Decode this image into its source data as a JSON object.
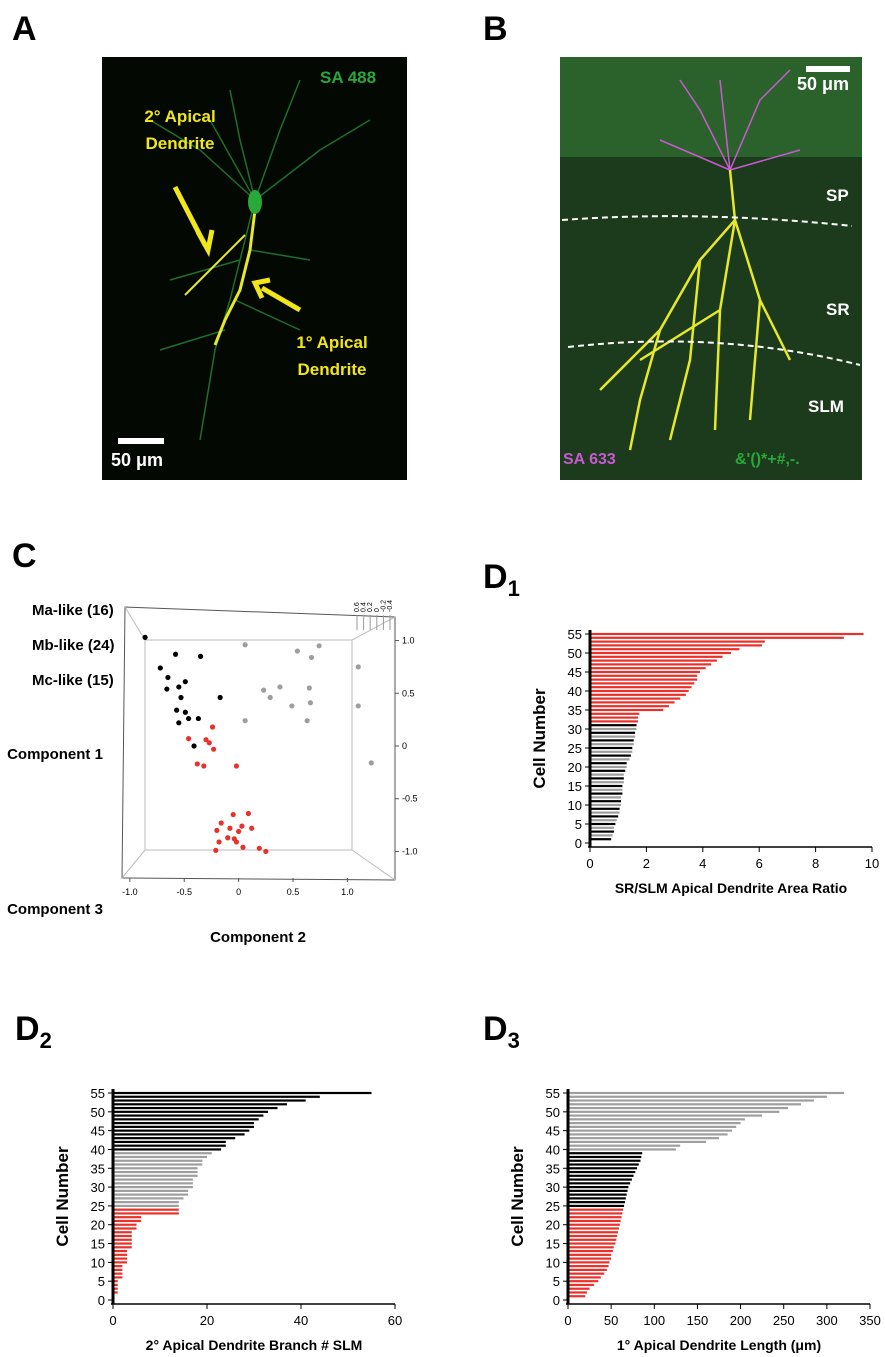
{
  "images": [
    {
      "panel": "A",
      "scale_bar": "50 μm",
      "labels": [
        "SA 488",
        "2° Apical Dendrite",
        "1° Apical Dendrite"
      ]
    },
    {
      "panel": "B",
      "scale_bar": "50 μm",
      "labels": [
        "SP",
        "SR",
        "SLM",
        "SA 633",
        "&'()*+#,-."
      ]
    }
  ],
  "chart_data": [
    {
      "type": "scatter3d",
      "panel": "C",
      "xlabel": "Component 2",
      "ylabel": "Component 1",
      "zlabel": "Component 3",
      "xlim": [
        -1.1,
        1.3
      ],
      "ylim": [
        -1.1,
        1.1
      ],
      "zlim": [
        0.6,
        -0.4
      ],
      "xticks": [
        {
          "value": -1,
          "label": "-1.0"
        },
        -0.5,
        0,
        0.5,
        {
          "value": 1,
          "label": "1.0"
        }
      ],
      "yticks": [
        {
          "value": 1,
          "label": "1.0"
        },
        0.5,
        0,
        -0.5,
        {
          "value": -1,
          "label": "-1.0"
        }
      ],
      "zticks": [
        0.6,
        0.4,
        0.2,
        0,
        -0.2,
        -0.4
      ],
      "series": [
        {
          "name": "Ma-like (16)",
          "color": "#000000",
          "x": [
            -0.86,
            -0.58,
            -0.35,
            -0.72,
            -0.65,
            -0.55,
            -0.66,
            -0.17,
            -0.49,
            -0.53,
            -0.57,
            -0.49,
            -0.37,
            -0.55,
            -0.41,
            -0.46
          ],
          "values": [
            1.03,
            0.87,
            0.85,
            0.74,
            0.65,
            0.56,
            0.54,
            0.46,
            0.61,
            0.46,
            0.34,
            0.32,
            0.26,
            0.22,
            0.0,
            0.26
          ]
        },
        {
          "name": "Mb-like (24)",
          "color": "#e8312b",
          "x": [
            -0.46,
            -0.24,
            -0.3,
            -0.27,
            -0.23,
            -0.38,
            -0.32,
            -0.02,
            -0.05,
            0.09,
            -0.16,
            0.03,
            -0.08,
            0.0,
            -0.2,
            0.12,
            -0.04,
            -0.18,
            -0.02,
            0.04,
            0.19,
            0.25,
            -0.21,
            -0.1
          ],
          "values": [
            0.07,
            0.18,
            0.06,
            0.03,
            -0.03,
            -0.17,
            -0.19,
            -0.19,
            -0.65,
            -0.64,
            -0.73,
            -0.76,
            -0.78,
            -0.81,
            -0.8,
            -0.78,
            -0.88,
            -0.91,
            -0.91,
            -0.96,
            -0.97,
            -1.0,
            -0.99,
            -0.87
          ]
        },
        {
          "name": "Mc-like (15)",
          "color": "#9e9e9e",
          "x": [
            0.06,
            0.54,
            0.74,
            1.1,
            0.67,
            0.23,
            0.38,
            0.29,
            0.49,
            0.65,
            0.66,
            0.06,
            0.63,
            1.1,
            1.22
          ],
          "values": [
            0.96,
            0.9,
            0.95,
            0.75,
            0.84,
            0.53,
            0.56,
            0.46,
            0.38,
            0.55,
            0.41,
            0.24,
            0.24,
            0.38,
            -0.16
          ]
        }
      ]
    },
    {
      "type": "barh",
      "panel": "D",
      "panel_sub": "1",
      "xlabel": "SR/SLM Apical Dendrite Area Ratio",
      "ylabel": "Cell Number",
      "xlim": [
        0,
        10
      ],
      "ylim": [
        0,
        55
      ],
      "xticks": [
        0,
        2,
        4,
        6,
        8,
        10
      ],
      "yticks": [
        0,
        5,
        10,
        15,
        20,
        25,
        30,
        35,
        40,
        45,
        50,
        55
      ],
      "y": [
        1,
        2,
        3,
        4,
        5,
        6,
        7,
        8,
        9,
        10,
        11,
        12,
        13,
        14,
        15,
        16,
        17,
        18,
        19,
        20,
        21,
        22,
        23,
        24,
        25,
        26,
        27,
        28,
        29,
        30,
        31,
        32,
        33,
        34,
        35,
        36,
        37,
        38,
        39,
        40,
        41,
        42,
        43,
        44,
        45,
        46,
        47,
        48,
        49,
        50,
        51,
        52,
        53,
        54,
        55
      ],
      "values": [
        0.75,
        0.8,
        0.85,
        0.85,
        0.9,
        0.95,
        1.0,
        1.05,
        1.05,
        1.1,
        1.1,
        1.1,
        1.15,
        1.15,
        1.15,
        1.2,
        1.2,
        1.2,
        1.25,
        1.3,
        1.3,
        1.4,
        1.45,
        1.5,
        1.5,
        1.55,
        1.55,
        1.6,
        1.6,
        1.65,
        1.65,
        1.7,
        1.7,
        1.75,
        2.6,
        2.8,
        3.0,
        3.2,
        3.4,
        3.5,
        3.6,
        3.7,
        3.8,
        3.8,
        3.9,
        4.1,
        4.3,
        4.5,
        4.7,
        5.0,
        5.3,
        6.1,
        6.2,
        9.0,
        9.7
      ],
      "colors": [
        "#000000",
        "#9e9e9e",
        "#000000",
        "#9e9e9e",
        "#000000",
        "#9e9e9e",
        "#000000",
        "#9e9e9e",
        "#000000",
        "#9e9e9e",
        "#000000",
        "#9e9e9e",
        "#000000",
        "#9e9e9e",
        "#000000",
        "#9e9e9e",
        "#000000",
        "#9e9e9e",
        "#000000",
        "#9e9e9e",
        "#000000",
        "#9e9e9e",
        "#000000",
        "#9e9e9e",
        "#000000",
        "#9e9e9e",
        "#000000",
        "#9e9e9e",
        "#000000",
        "#9e9e9e",
        "#000000",
        "#e8312b",
        "#e8312b",
        "#e8312b",
        "#e8312b",
        "#e8312b",
        "#e8312b",
        "#e8312b",
        "#e8312b",
        "#e8312b",
        "#e8312b",
        "#e8312b",
        "#e8312b",
        "#e8312b",
        "#e8312b",
        "#e8312b",
        "#e8312b",
        "#e8312b",
        "#e8312b",
        "#e8312b",
        "#e8312b",
        "#e8312b",
        "#e8312b",
        "#e8312b",
        "#e8312b"
      ]
    },
    {
      "type": "barh",
      "panel": "D",
      "panel_sub": "2",
      "xlabel": "2° Apical Dendrite Branch # SLM",
      "ylabel": "Cell Number",
      "xlim": [
        0,
        60
      ],
      "ylim": [
        0,
        55
      ],
      "xticks": [
        0,
        20,
        40,
        60
      ],
      "yticks": [
        0,
        5,
        10,
        15,
        20,
        25,
        30,
        35,
        40,
        45,
        50,
        55
      ],
      "y": [
        1,
        2,
        3,
        4,
        5,
        6,
        7,
        8,
        9,
        10,
        11,
        12,
        13,
        14,
        15,
        16,
        17,
        18,
        19,
        20,
        21,
        22,
        23,
        24,
        25,
        26,
        27,
        28,
        29,
        30,
        31,
        32,
        33,
        34,
        35,
        36,
        37,
        38,
        39,
        40,
        41,
        42,
        43,
        44,
        45,
        46,
        47,
        48,
        49,
        50,
        51,
        52,
        53,
        54,
        55
      ],
      "values": [
        0,
        1,
        1,
        1,
        1,
        2,
        2,
        2,
        2,
        3,
        3,
        3,
        3,
        4,
        4,
        4,
        4,
        4,
        5,
        5,
        6,
        6,
        14,
        14,
        14,
        14,
        15,
        16,
        16,
        17,
        17,
        17,
        18,
        18,
        18,
        19,
        19,
        20,
        21,
        23,
        24,
        24,
        26,
        28,
        29,
        30,
        30,
        31,
        32,
        33,
        35,
        37,
        41,
        44,
        55
      ],
      "colors": [
        "#e8312b",
        "#e8312b",
        "#e8312b",
        "#e8312b",
        "#e8312b",
        "#e8312b",
        "#e8312b",
        "#e8312b",
        "#e8312b",
        "#e8312b",
        "#e8312b",
        "#e8312b",
        "#e8312b",
        "#e8312b",
        "#e8312b",
        "#e8312b",
        "#e8312b",
        "#e8312b",
        "#e8312b",
        "#e8312b",
        "#e8312b",
        "#e8312b",
        "#e8312b",
        "#e8312b",
        "#9e9e9e",
        "#9e9e9e",
        "#9e9e9e",
        "#9e9e9e",
        "#9e9e9e",
        "#9e9e9e",
        "#9e9e9e",
        "#9e9e9e",
        "#9e9e9e",
        "#9e9e9e",
        "#9e9e9e",
        "#9e9e9e",
        "#9e9e9e",
        "#9e9e9e",
        "#9e9e9e",
        "#000000",
        "#000000",
        "#000000",
        "#000000",
        "#000000",
        "#000000",
        "#000000",
        "#000000",
        "#000000",
        "#000000",
        "#000000",
        "#000000",
        "#000000",
        "#000000",
        "#000000",
        "#000000"
      ]
    },
    {
      "type": "barh",
      "panel": "D",
      "panel_sub": "3",
      "xlabel": "1° Apical Dendrite Length (μm)",
      "ylabel": "Cell Number",
      "xlim": [
        0,
        350
      ],
      "ylim": [
        0,
        55
      ],
      "xticks": [
        0,
        50,
        100,
        150,
        200,
        250,
        300,
        350
      ],
      "yticks": [
        0,
        5,
        10,
        15,
        20,
        25,
        30,
        35,
        40,
        45,
        50,
        55
      ],
      "y": [
        1,
        2,
        3,
        4,
        5,
        6,
        7,
        8,
        9,
        10,
        11,
        12,
        13,
        14,
        15,
        16,
        17,
        18,
        19,
        20,
        21,
        22,
        23,
        24,
        25,
        26,
        27,
        28,
        29,
        30,
        31,
        32,
        33,
        34,
        35,
        36,
        37,
        38,
        39,
        40,
        41,
        42,
        43,
        44,
        45,
        46,
        47,
        48,
        49,
        50,
        51,
        52,
        53,
        54,
        55
      ],
      "values": [
        20,
        22,
        25,
        30,
        35,
        38,
        42,
        45,
        47,
        48,
        50,
        50,
        52,
        53,
        55,
        56,
        57,
        58,
        59,
        60,
        61,
        62,
        63,
        64,
        65,
        66,
        67,
        68,
        69,
        70,
        72,
        74,
        76,
        78,
        80,
        82,
        84,
        85,
        86,
        125,
        130,
        160,
        175,
        185,
        190,
        195,
        200,
        205,
        225,
        245,
        255,
        270,
        285,
        300,
        320
      ],
      "colors": [
        "#e8312b",
        "#e8312b",
        "#e8312b",
        "#e8312b",
        "#e8312b",
        "#e8312b",
        "#e8312b",
        "#e8312b",
        "#e8312b",
        "#e8312b",
        "#e8312b",
        "#e8312b",
        "#e8312b",
        "#e8312b",
        "#e8312b",
        "#e8312b",
        "#e8312b",
        "#e8312b",
        "#e8312b",
        "#e8312b",
        "#e8312b",
        "#e8312b",
        "#e8312b",
        "#e8312b",
        "#000000",
        "#000000",
        "#000000",
        "#000000",
        "#000000",
        "#000000",
        "#000000",
        "#000000",
        "#000000",
        "#000000",
        "#000000",
        "#000000",
        "#000000",
        "#000000",
        "#000000",
        "#9e9e9e",
        "#9e9e9e",
        "#9e9e9e",
        "#9e9e9e",
        "#9e9e9e",
        "#9e9e9e",
        "#9e9e9e",
        "#9e9e9e",
        "#9e9e9e",
        "#9e9e9e",
        "#9e9e9e",
        "#9e9e9e",
        "#9e9e9e",
        "#9e9e9e",
        "#9e9e9e",
        "#9e9e9e"
      ]
    }
  ]
}
